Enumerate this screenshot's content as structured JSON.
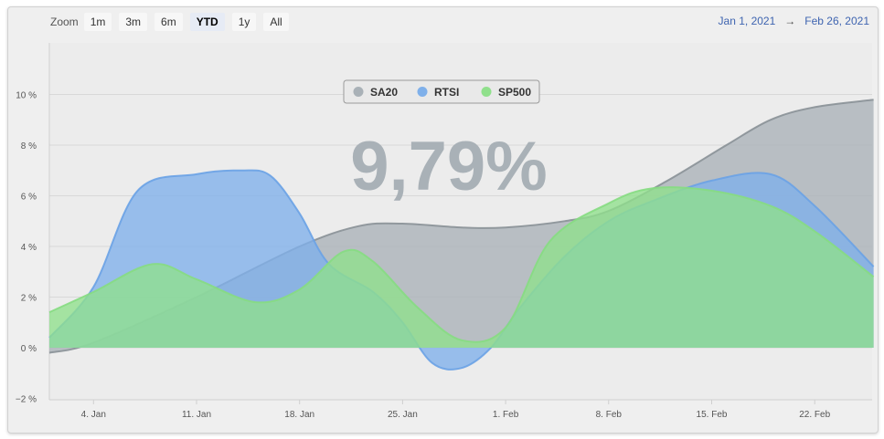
{
  "zoom": {
    "label": "Zoom",
    "buttons": [
      "1m",
      "3m",
      "6m",
      "YTD",
      "1y",
      "All"
    ],
    "active": "YTD"
  },
  "range": {
    "from": "Jan 1, 2021",
    "arrow": "→",
    "to": "Feb 26, 2021"
  },
  "highlight_value": "9,79%",
  "chart_data": {
    "type": "area",
    "x_ticks": [
      "4. Jan",
      "11. Jan",
      "18. Jan",
      "25. Jan",
      "1. Feb",
      "8. Feb",
      "15. Feb",
      "22. Feb"
    ],
    "y_ticks": [
      "−2 %",
      "0 %",
      "2 %",
      "4 %",
      "6 %",
      "8 %",
      "10 %"
    ],
    "ylim": [
      -2,
      10
    ],
    "xlim": [
      "2021-01-01",
      "2021-02-26"
    ],
    "grid": "horizontal",
    "legend_position": "top-center",
    "series": [
      {
        "name": "SA20",
        "color": "#a9b1b7",
        "points": [
          [
            "2021-01-01",
            -0.2
          ],
          [
            "2021-01-04",
            0.2
          ],
          [
            "2021-01-11",
            2.0
          ],
          [
            "2021-01-18",
            4.0
          ],
          [
            "2021-01-22",
            4.8
          ],
          [
            "2021-01-25",
            4.9
          ],
          [
            "2021-01-29",
            4.75
          ],
          [
            "2021-02-01",
            4.75
          ],
          [
            "2021-02-05",
            5.0
          ],
          [
            "2021-02-08",
            5.4
          ],
          [
            "2021-02-12",
            6.6
          ],
          [
            "2021-02-16",
            8.0
          ],
          [
            "2021-02-19",
            9.0
          ],
          [
            "2021-02-22",
            9.5
          ],
          [
            "2021-02-26",
            9.79
          ]
        ]
      },
      {
        "name": "RTSI",
        "color": "#7fb0ea",
        "points": [
          [
            "2021-01-01",
            0.4
          ],
          [
            "2021-01-04",
            2.4
          ],
          [
            "2021-01-07",
            6.2
          ],
          [
            "2021-01-11",
            6.85
          ],
          [
            "2021-01-14",
            7.0
          ],
          [
            "2021-01-16",
            6.8
          ],
          [
            "2021-01-18",
            5.3
          ],
          [
            "2021-01-20",
            3.3
          ],
          [
            "2021-01-23",
            2.2
          ],
          [
            "2021-01-25",
            1.0
          ],
          [
            "2021-01-27",
            -0.6
          ],
          [
            "2021-01-29",
            -0.8
          ],
          [
            "2021-01-31",
            0.0
          ],
          [
            "2021-02-02",
            1.6
          ],
          [
            "2021-02-05",
            3.6
          ],
          [
            "2021-02-08",
            5.0
          ],
          [
            "2021-02-11",
            5.8
          ],
          [
            "2021-02-15",
            6.6
          ],
          [
            "2021-02-19",
            6.85
          ],
          [
            "2021-02-22",
            5.6
          ],
          [
            "2021-02-26",
            3.2
          ]
        ]
      },
      {
        "name": "SP500",
        "color": "#90e08c",
        "points": [
          [
            "2021-01-01",
            1.4
          ],
          [
            "2021-01-04",
            2.2
          ],
          [
            "2021-01-08",
            3.3
          ],
          [
            "2021-01-11",
            2.7
          ],
          [
            "2021-01-15",
            1.8
          ],
          [
            "2021-01-18",
            2.3
          ],
          [
            "2021-01-21",
            3.8
          ],
          [
            "2021-01-23",
            3.4
          ],
          [
            "2021-01-26",
            1.6
          ],
          [
            "2021-01-29",
            0.3
          ],
          [
            "2021-02-01",
            0.8
          ],
          [
            "2021-02-04",
            4.2
          ],
          [
            "2021-02-08",
            5.7
          ],
          [
            "2021-02-11",
            6.3
          ],
          [
            "2021-02-15",
            6.2
          ],
          [
            "2021-02-19",
            5.6
          ],
          [
            "2021-02-22",
            4.6
          ],
          [
            "2021-02-26",
            2.8
          ]
        ]
      }
    ]
  }
}
